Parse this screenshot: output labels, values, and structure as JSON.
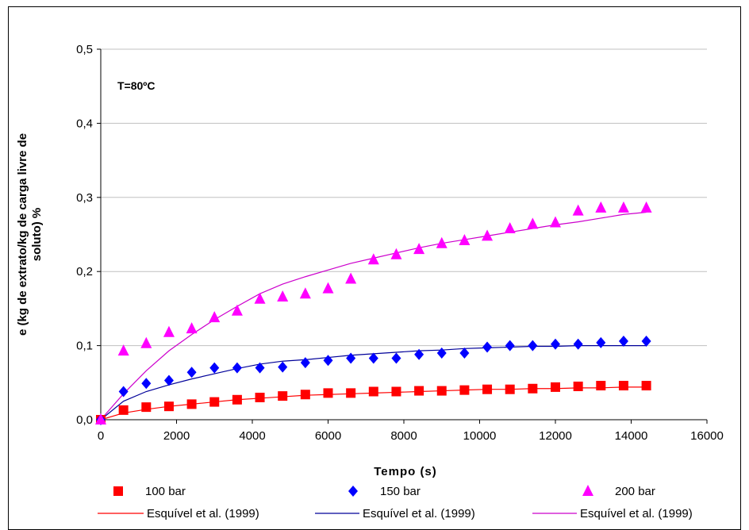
{
  "chart_data": {
    "type": "scatter",
    "annotation": "T=80ºC",
    "xlabel": "Tempo (s)",
    "ylabel_lines": [
      "e (kg de extrato/kg de carga livre de",
      "soluto) %"
    ],
    "xlim": [
      0,
      16000
    ],
    "ylim": [
      0,
      0.5
    ],
    "xticks": [
      0,
      2000,
      4000,
      6000,
      8000,
      10000,
      12000,
      14000,
      16000
    ],
    "yticks": [
      0,
      0.1,
      0.2,
      0.3,
      0.4,
      0.5
    ],
    "xtick_labels": [
      "0",
      "2000",
      "4000",
      "6000",
      "8000",
      "10000",
      "12000",
      "14000",
      "16000"
    ],
    "ytick_labels": [
      "0,0",
      "0,1",
      "0,2",
      "0,3",
      "0,4",
      "0,5"
    ],
    "grid": "horizontal",
    "x": [
      0,
      600,
      1200,
      1800,
      2400,
      3000,
      3600,
      4200,
      4800,
      5400,
      6000,
      6600,
      7200,
      7800,
      8400,
      9000,
      9600,
      10200,
      10800,
      11400,
      12000,
      12600,
      13200,
      13800,
      14400
    ],
    "series": [
      {
        "name": "100 bar",
        "kind": "marker",
        "marker": "square",
        "color": "#ff0000",
        "values": [
          0.0,
          0.013,
          0.017,
          0.018,
          0.021,
          0.024,
          0.027,
          0.03,
          0.032,
          0.034,
          0.036,
          0.036,
          0.038,
          0.038,
          0.039,
          0.039,
          0.04,
          0.041,
          0.041,
          0.042,
          0.044,
          0.045,
          0.046,
          0.046,
          0.046
        ]
      },
      {
        "name": "150 bar",
        "kind": "marker",
        "marker": "diamond",
        "color": "#0000ff",
        "values": [
          0.0,
          0.038,
          0.049,
          0.053,
          0.064,
          0.07,
          0.07,
          0.07,
          0.071,
          0.077,
          0.08,
          0.083,
          0.083,
          0.083,
          0.088,
          0.09,
          0.09,
          0.098,
          0.1,
          0.1,
          0.102,
          0.102,
          0.104,
          0.106,
          0.106
        ]
      },
      {
        "name": "200 bar",
        "kind": "marker",
        "marker": "triangle",
        "color": "#ff00ff",
        "values": [
          0.0,
          0.093,
          0.103,
          0.118,
          0.123,
          0.138,
          0.147,
          0.163,
          0.166,
          0.17,
          0.177,
          0.19,
          0.216,
          0.223,
          0.23,
          0.238,
          0.242,
          0.248,
          0.258,
          0.264,
          0.266,
          0.282,
          0.286,
          0.286,
          0.286
        ]
      },
      {
        "name": "Esquível et al. (1999)",
        "kind": "line",
        "color": "#ff0000",
        "values": [
          0.0,
          0.009,
          0.014,
          0.018,
          0.021,
          0.024,
          0.027,
          0.029,
          0.031,
          0.033,
          0.034,
          0.035,
          0.036,
          0.037,
          0.038,
          0.039,
          0.04,
          0.041,
          0.041,
          0.042,
          0.042,
          0.043,
          0.043,
          0.044,
          0.044
        ]
      },
      {
        "name": "Esquível et al. (1999)",
        "kind": "line",
        "color": "#000099",
        "values": [
          0.0,
          0.025,
          0.038,
          0.047,
          0.055,
          0.062,
          0.069,
          0.075,
          0.079,
          0.081,
          0.084,
          0.087,
          0.089,
          0.091,
          0.093,
          0.094,
          0.096,
          0.097,
          0.098,
          0.099,
          0.099,
          0.1,
          0.1,
          0.1,
          0.1
        ]
      },
      {
        "name": "Esquível et al. (1999)",
        "kind": "line",
        "color": "#cc00cc",
        "values": [
          0.0,
          0.035,
          0.066,
          0.093,
          0.115,
          0.135,
          0.153,
          0.17,
          0.183,
          0.193,
          0.202,
          0.211,
          0.218,
          0.225,
          0.232,
          0.238,
          0.243,
          0.248,
          0.253,
          0.258,
          0.263,
          0.267,
          0.272,
          0.277,
          0.28
        ]
      }
    ],
    "legend_position": "bottom"
  }
}
